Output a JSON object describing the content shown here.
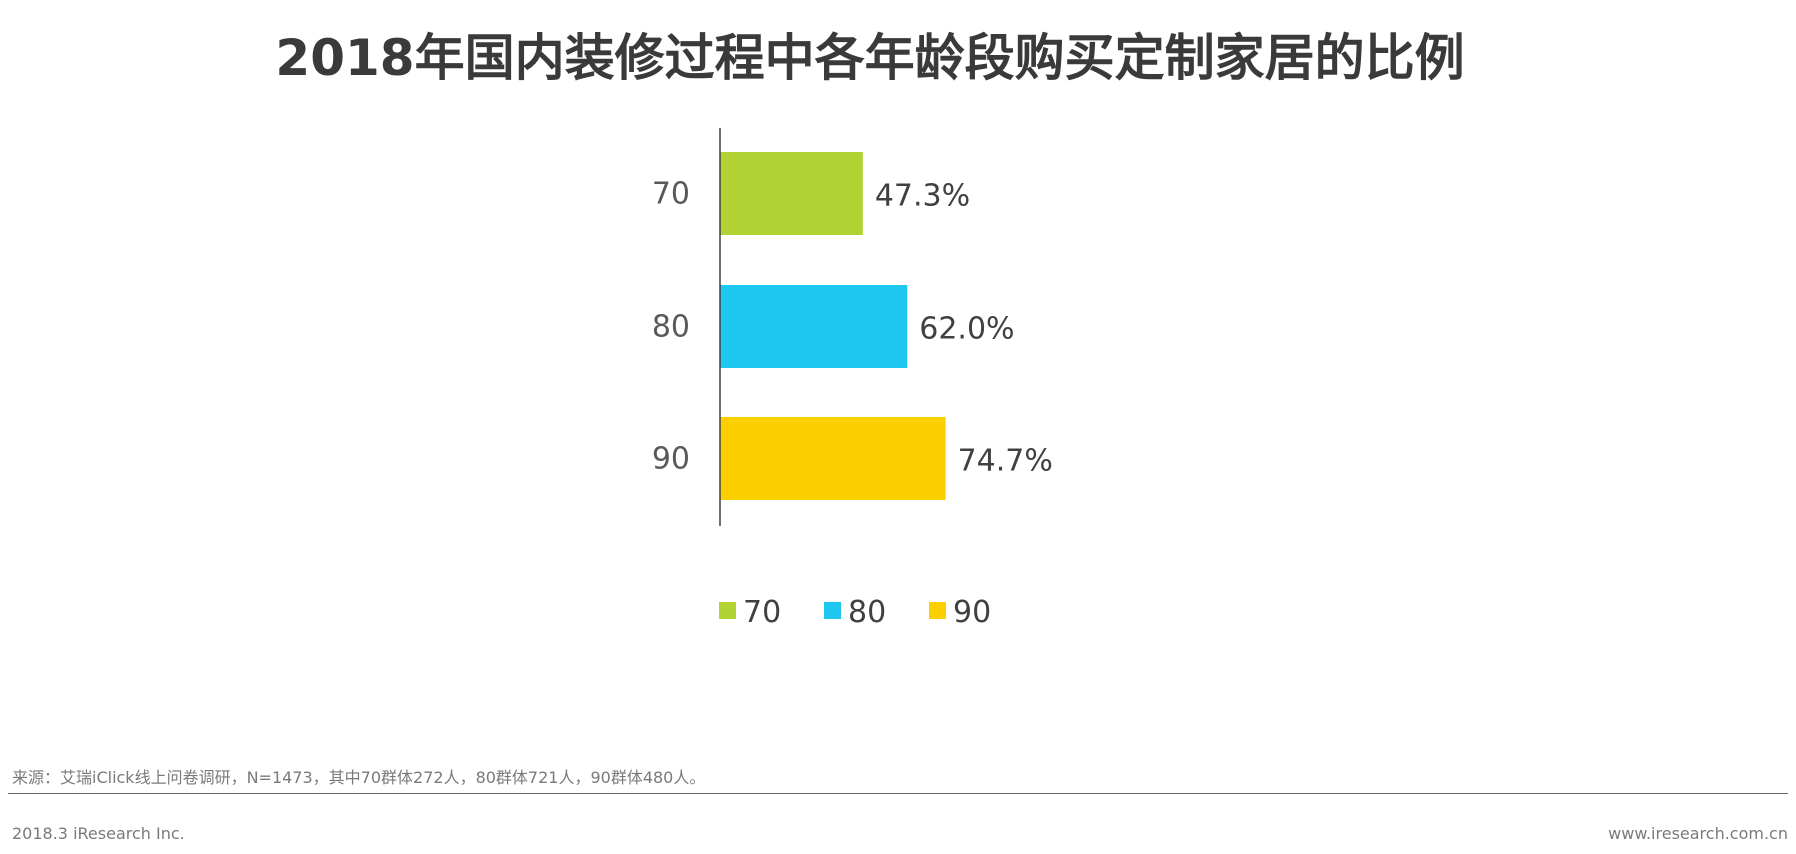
{
  "title": "2018年国内装修过程中各年龄段购买定制家居的比例",
  "chart_data": {
    "type": "bar",
    "orientation": "horizontal",
    "categories": [
      "70",
      "80",
      "90"
    ],
    "values": [
      47.3,
      62.0,
      74.7
    ],
    "value_labels": [
      "47.3%",
      "62.0%",
      "74.7%"
    ],
    "colors": [
      "#b3d334",
      "#1ec7f0",
      "#fccf00"
    ],
    "legend": {
      "placement": "bottom",
      "entries": [
        "70",
        "80",
        "90"
      ]
    },
    "xlim": [
      0,
      100
    ],
    "grid": false
  },
  "source_note": "来源：艾瑞iClick线上问卷调研，N=1473，其中70群体272人，80群体721人，90群体480人。",
  "footer": {
    "left": "2018.3 iResearch Inc.",
    "right": "www.iresearch.com.cn"
  }
}
